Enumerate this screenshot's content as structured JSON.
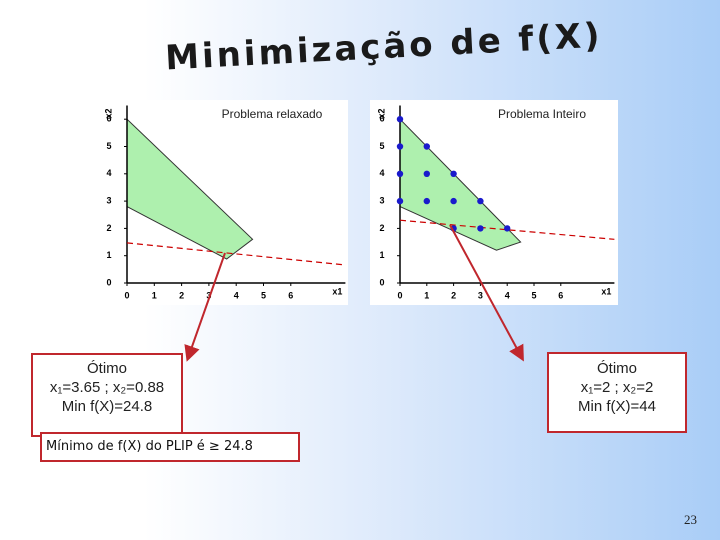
{
  "title": "Minimização de f(X)",
  "chart_data": [
    {
      "type": "area",
      "title": "Problema relaxado",
      "x_label": "x1",
      "y_label": "x2",
      "xlim": [
        0,
        8
      ],
      "ylim": [
        0,
        6.5
      ],
      "xticks": [
        0,
        1,
        2,
        3,
        4,
        5,
        6
      ],
      "yticks": [
        0,
        1,
        2,
        3,
        4,
        5,
        6
      ],
      "region": {
        "x": [
          0,
          4.6,
          3.65,
          0
        ],
        "y": [
          6,
          1.6,
          0.88,
          2.8
        ],
        "color": "#aef0ae"
      },
      "objective_line": {
        "x": [
          0,
          8
        ],
        "y": [
          1.47,
          0.66
        ],
        "color": "#cc0000"
      }
    },
    {
      "type": "scatter",
      "title": "Problema Inteiro",
      "x_label": "x1",
      "y_label": "x2",
      "xlim": [
        0,
        8
      ],
      "ylim": [
        0,
        6.5
      ],
      "xticks": [
        0,
        1,
        2,
        3,
        4,
        5,
        6
      ],
      "yticks": [
        0,
        1,
        2,
        3,
        4,
        5,
        6
      ],
      "region": {
        "x": [
          0,
          4.5,
          3.6,
          0
        ],
        "y": [
          6,
          1.5,
          1.2,
          2.8
        ],
        "color": "#aef0ae"
      },
      "objective_line": {
        "x": [
          0,
          8
        ],
        "y": [
          2.3,
          1.6
        ],
        "color": "#cc0000"
      },
      "points": {
        "x": [
          0,
          0,
          1,
          0,
          1,
          2,
          0,
          1,
          2,
          3,
          2,
          3,
          4
        ],
        "y": [
          6,
          5,
          5,
          4,
          4,
          4,
          3,
          3,
          3,
          3,
          2,
          2,
          2
        ],
        "color": "#1a1acc"
      }
    }
  ],
  "optimum_relaxed": {
    "heading": "Ótimo",
    "variables": "x₁=3.65 ; x₂=0.88",
    "objective": "Min f(X)=24.8"
  },
  "optimum_integer": {
    "heading": "Ótimo",
    "variables": "x₁=2 ; x₂=2",
    "objective": "Min f(X)=44"
  },
  "conclusion": "Mínimo de f(X) do PLIP é ≥ 24.8",
  "page_number": "23"
}
